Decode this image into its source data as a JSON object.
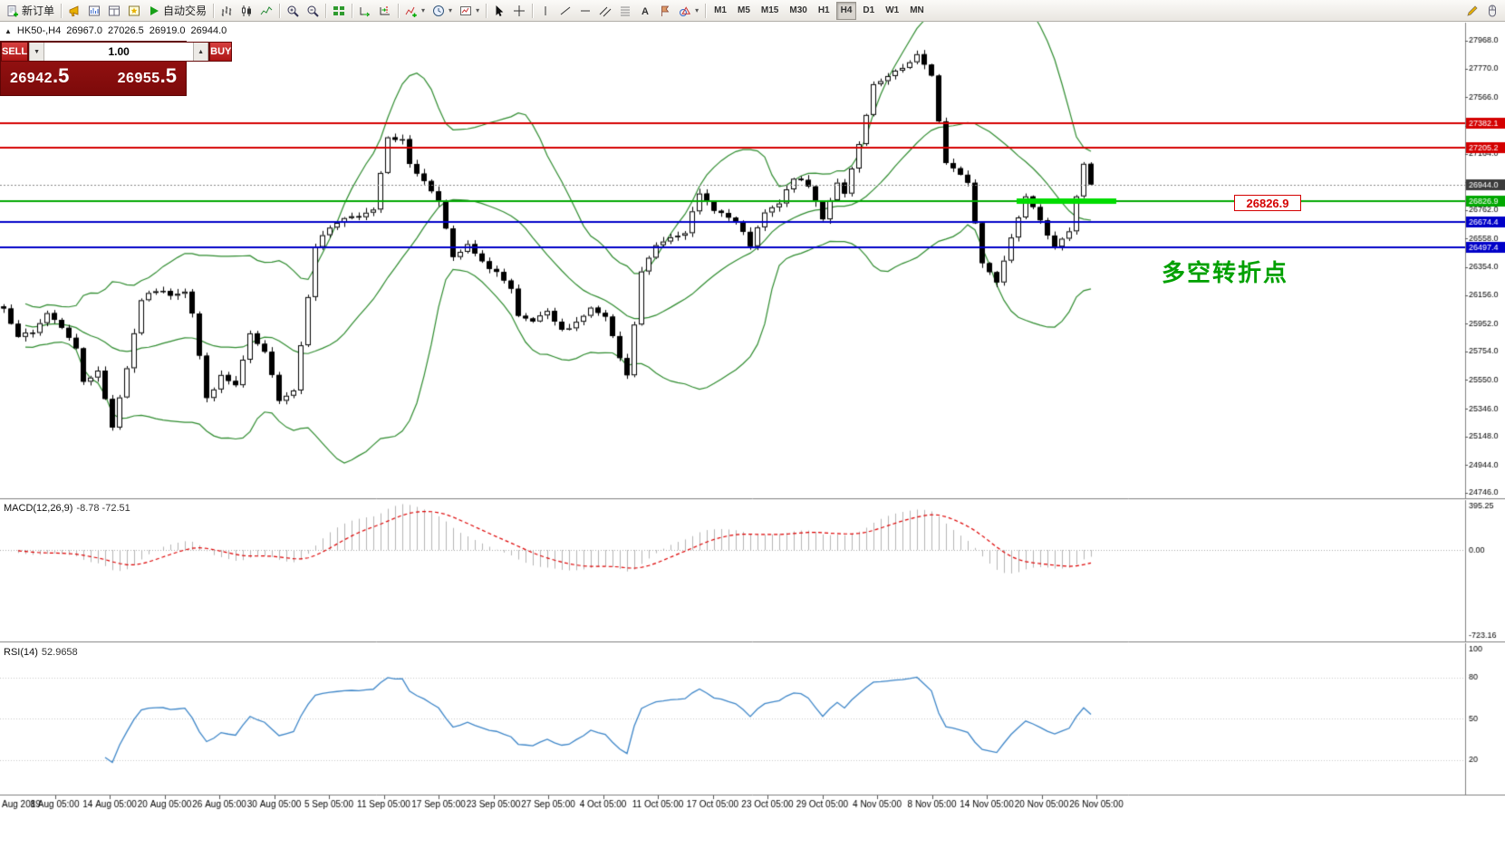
{
  "toolbar": {
    "groups": [
      {
        "items": [
          {
            "name": "new-order-button",
            "icon": "new-order",
            "label": "新订单"
          }
        ]
      },
      {
        "items": [
          {
            "name": "news-button",
            "icon": "megaphone"
          },
          {
            "name": "market-watch-button",
            "icon": "market-watch"
          },
          {
            "name": "data-window-button",
            "icon": "data-window"
          },
          {
            "name": "navigator-button",
            "icon": "navigator"
          },
          {
            "name": "autotrading-button",
            "icon": "autotrading",
            "label": "自动交易"
          }
        ]
      },
      {
        "items": [
          {
            "name": "bar-chart-button",
            "icon": "bar-chart"
          },
          {
            "name": "candlestick-button",
            "icon": "candlestick"
          },
          {
            "name": "line-chart-button",
            "icon": "line-chart"
          }
        ]
      },
      {
        "items": [
          {
            "name": "zoom-in-button",
            "icon": "zoom-in"
          },
          {
            "name": "zoom-out-button",
            "icon": "zoom-out"
          }
        ]
      },
      {
        "items": [
          {
            "name": "tile-windows-button",
            "icon": "tile-windows"
          }
        ]
      },
      {
        "items": [
          {
            "name": "auto-scroll-button",
            "icon": "auto-scroll"
          },
          {
            "name": "chart-shift-button",
            "icon": "chart-shift"
          }
        ]
      },
      {
        "items": [
          {
            "name": "indicators-button",
            "icon": "indicator-add",
            "dropdown": true
          },
          {
            "name": "periods-button",
            "icon": "clock",
            "dropdown": true
          },
          {
            "name": "templates-button",
            "icon": "template",
            "dropdown": true
          }
        ]
      },
      {
        "items": [
          {
            "name": "cursor-button",
            "icon": "cursor"
          },
          {
            "name": "crosshair-button",
            "icon": "crosshair"
          }
        ]
      },
      {
        "items": [
          {
            "name": "vertical-line-button",
            "icon": "vline"
          },
          {
            "name": "trendline-button",
            "icon": "trendline"
          },
          {
            "name": "horizontal-line-button",
            "icon": "hline"
          },
          {
            "name": "channel-button",
            "icon": "channel"
          },
          {
            "name": "fibonacci-button",
            "icon": "fibonacci"
          },
          {
            "name": "text-button",
            "icon": "text"
          },
          {
            "name": "label-button",
            "icon": "label"
          },
          {
            "name": "shapes-button",
            "icon": "shapes",
            "dropdown": true
          }
        ]
      }
    ],
    "timeframes": {
      "items": [
        "M1",
        "M5",
        "M15",
        "M30",
        "H1",
        "H4",
        "D1",
        "W1",
        "MN"
      ],
      "active": "H4"
    },
    "right_items": [
      {
        "name": "pencil-button",
        "icon": "pencil"
      },
      {
        "name": "mouse-button",
        "icon": "mouse"
      }
    ]
  },
  "chart": {
    "one_click_toggle_glyph": "▲",
    "title": {
      "symbol": "HK50-,H4",
      "open": "26967.0",
      "high": "27026.5",
      "low": "26919.0",
      "close": "26944.0"
    },
    "trade_panel": {
      "sell_label": "SELL",
      "buy_label": "BUY",
      "volume": "1.00",
      "sell_price": "26942",
      "sell_pips": ".5",
      "buy_price": "26955",
      "buy_pips": ".5",
      "spin_down_glyph": "▼",
      "spin_up_glyph": "▲"
    },
    "annotation": "多空转折点",
    "price_tag": "26826.9",
    "macd_label": {
      "name": "MACD(12,26,9)",
      "values": "-8.78 -72.51"
    },
    "rsi_label": {
      "name": "RSI(14)",
      "value": "52.9658"
    }
  },
  "chart_data": {
    "type": "candlestick",
    "symbol": "HK50-",
    "timeframe": "H4",
    "title_ohlc": {
      "open": 26967.0,
      "high": 27026.5,
      "low": 26919.0,
      "close": 26944.0
    },
    "current_price": 26944.0,
    "candle_count": 151,
    "close_waypoints": [
      [
        0,
        26060
      ],
      [
        2,
        25870
      ],
      [
        4,
        25880
      ],
      [
        6,
        26030
      ],
      [
        8,
        25930
      ],
      [
        10,
        25770
      ],
      [
        11,
        25545
      ],
      [
        13,
        25610
      ],
      [
        15,
        25220
      ],
      [
        17,
        25640
      ],
      [
        19,
        26125
      ],
      [
        21,
        26190
      ],
      [
        23,
        26160
      ],
      [
        25,
        26190
      ],
      [
        26,
        26030
      ],
      [
        28,
        25415
      ],
      [
        30,
        25575
      ],
      [
        32,
        25510
      ],
      [
        34,
        25870
      ],
      [
        36,
        25740
      ],
      [
        38,
        25415
      ],
      [
        40,
        25480
      ],
      [
        41,
        25800
      ],
      [
        43,
        26510
      ],
      [
        45,
        26640
      ],
      [
        47,
        26705
      ],
      [
        49,
        26705
      ],
      [
        51,
        26770
      ],
      [
        53,
        27290
      ],
      [
        55,
        27255
      ],
      [
        56,
        27095
      ],
      [
        58,
        26965
      ],
      [
        60,
        26835
      ],
      [
        62,
        26415
      ],
      [
        64,
        26510
      ],
      [
        66,
        26385
      ],
      [
        68,
        26320
      ],
      [
        70,
        26190
      ],
      [
        71,
        25995
      ],
      [
        73,
        25965
      ],
      [
        75,
        26030
      ],
      [
        77,
        25900
      ],
      [
        79,
        25965
      ],
      [
        81,
        26060
      ],
      [
        83,
        25995
      ],
      [
        85,
        25705
      ],
      [
        86,
        25575
      ],
      [
        88,
        26320
      ],
      [
        90,
        26510
      ],
      [
        92,
        26575
      ],
      [
        94,
        26610
      ],
      [
        96,
        26870
      ],
      [
        98,
        26770
      ],
      [
        100,
        26705
      ],
      [
        101,
        26675
      ],
      [
        103,
        26510
      ],
      [
        105,
        26740
      ],
      [
        107,
        26805
      ],
      [
        109,
        26995
      ],
      [
        111,
        26930
      ],
      [
        113,
        26705
      ],
      [
        115,
        26965
      ],
      [
        116,
        26870
      ],
      [
        118,
        27225
      ],
      [
        120,
        27645
      ],
      [
        122,
        27710
      ],
      [
        124,
        27775
      ],
      [
        126,
        27870
      ],
      [
        128,
        27710
      ],
      [
        130,
        27095
      ],
      [
        131,
        27060
      ],
      [
        133,
        26965
      ],
      [
        135,
        26385
      ],
      [
        137,
        26255
      ],
      [
        139,
        26575
      ],
      [
        141,
        26870
      ],
      [
        143,
        26675
      ],
      [
        145,
        26510
      ],
      [
        147,
        26610
      ],
      [
        149,
        27095
      ],
      [
        150,
        26944
      ]
    ],
    "bollinger": {
      "period": 20,
      "deviation": 2,
      "color": "#2e8b2e"
    },
    "horizontal_levels": [
      {
        "value": 27382.1,
        "color": "#d40000"
      },
      {
        "value": 27205.2,
        "color": "#d40000"
      },
      {
        "value": 26826.9,
        "color": "#00a800",
        "highlight": true
      },
      {
        "value": 26674.4,
        "color": "#0000c8"
      },
      {
        "value": 26497.4,
        "color": "#0000c8"
      }
    ],
    "y_axis_ticks": [
      "27968.0",
      "27770.0",
      "27566.0",
      "27362.0",
      "27164.0",
      "26960.0",
      "26762.0",
      "26558.0",
      "26354.0",
      "26156.0",
      "25952.0",
      "25754.0",
      "25550.0",
      "25346.0",
      "25148.0",
      "24944.0",
      "24746.0"
    ],
    "x_axis_labels": [
      "Aug 2019",
      "8 Aug 05:00",
      "14 Aug 05:00",
      "20 Aug 05:00",
      "26 Aug 05:00",
      "30 Aug 05:00",
      "5 Sep 05:00",
      "11 Sep 05:00",
      "17 Sep 05:00",
      "23 Sep 05:00",
      "27 Sep 05:00",
      "4 Oct 05:00",
      "11 Oct 05:00",
      "17 Oct 05:00",
      "23 Oct 05:00",
      "29 Oct 05:00",
      "4 Nov 05:00",
      "8 Nov 05:00",
      "14 Nov 05:00",
      "20 Nov 05:00",
      "26 Nov 05:00"
    ],
    "indicators": [
      {
        "type": "MACD",
        "label": "MACD(12,26,9)",
        "current_values": [
          -8.78,
          -72.51
        ],
        "axis_ticks": [
          "395.25",
          "0.00",
          "-723.16"
        ],
        "histogram_color": "#b4b4b4",
        "signal_color": "#dd0000"
      },
      {
        "type": "RSI",
        "label": "RSI(14)",
        "current_value": 52.9658,
        "axis_ticks": [
          "100",
          "80",
          "50",
          "20"
        ],
        "levels": [
          80,
          50,
          20
        ],
        "line_color": "#3e86c8"
      }
    ]
  }
}
